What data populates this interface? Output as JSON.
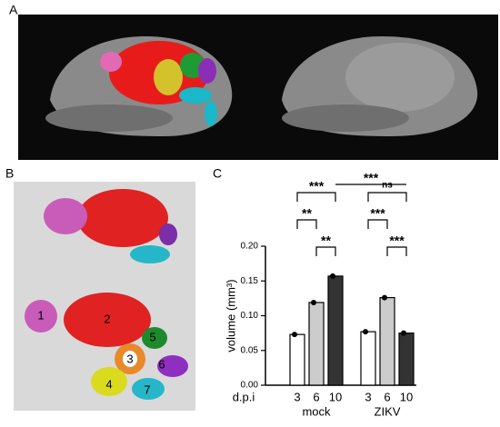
{
  "panels": {
    "a": "A",
    "b": "B",
    "c": "C"
  },
  "region_labels": [
    "1",
    "2",
    "3",
    "4",
    "5",
    "6",
    "7"
  ],
  "chart_data": {
    "type": "bar",
    "y_label": "volume (mm³)",
    "x_label": "d.p.i",
    "categories": [
      "3",
      "6",
      "10"
    ],
    "colors": [
      "#ffffff",
      "#cccccc",
      "#333333"
    ],
    "series": [
      {
        "name": "mock",
        "values": [
          0.073,
          0.119,
          0.157
        ]
      },
      {
        "name": "ZIKV",
        "values": [
          0.077,
          0.126,
          0.075
        ]
      }
    ],
    "ylim": [
      0,
      0.2
    ],
    "yticks": [
      {
        "value": 0,
        "label": "0.00"
      },
      {
        "value": 0.05,
        "label": "0.05"
      },
      {
        "value": 0.1,
        "label": "0.10"
      },
      {
        "value": 0.15,
        "label": "0.15"
      },
      {
        "value": 0.2,
        "label": "0.20"
      }
    ],
    "significance": [
      "**",
      "***",
      "**",
      "***",
      "ns",
      "***",
      "***"
    ]
  }
}
